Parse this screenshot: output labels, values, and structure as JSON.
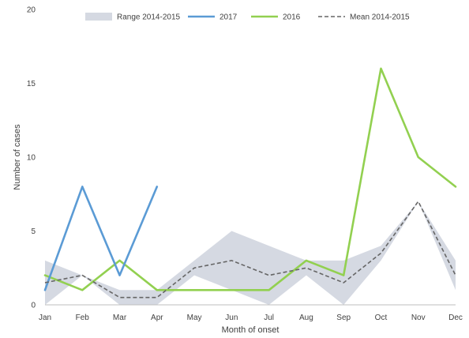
{
  "chart_data": {
    "type": "line",
    "title": "",
    "xlabel": "Month of onset",
    "ylabel": "Number of cases",
    "ylim": [
      0,
      20
    ],
    "yticks": [
      "0",
      "5",
      "10",
      "15",
      "20"
    ],
    "categories": [
      "Jan",
      "Feb",
      "Mar",
      "Apr",
      "May",
      "Jun",
      "Jul",
      "Aug",
      "Sep",
      "Oct",
      "Nov",
      "Dec"
    ],
    "grid": false,
    "legend_position": "top",
    "range_band": {
      "name": "Range 2014-2015",
      "color": "#d5d9e2",
      "low": [
        0,
        2,
        0,
        0,
        2,
        1,
        0,
        2,
        0,
        3,
        7,
        1
      ],
      "high": [
        3,
        2,
        1,
        1,
        3,
        5,
        4,
        3,
        3,
        4,
        7,
        3
      ]
    },
    "series": [
      {
        "name": "2017",
        "color": "#5b9bd5",
        "style": "solid",
        "values": [
          1,
          8,
          2,
          8,
          null,
          null,
          null,
          null,
          null,
          null,
          null,
          null
        ]
      },
      {
        "name": "2016",
        "color": "#92d050",
        "style": "solid",
        "values": [
          2,
          1,
          3,
          1,
          1,
          1,
          1,
          3,
          2,
          16,
          10,
          8
        ]
      },
      {
        "name": "Mean 2014-2015",
        "color": "#666666",
        "style": "dashed",
        "values": [
          1.5,
          2,
          0.5,
          0.5,
          2.5,
          3,
          2,
          2.5,
          1.5,
          3.5,
          7,
          2
        ]
      }
    ]
  }
}
